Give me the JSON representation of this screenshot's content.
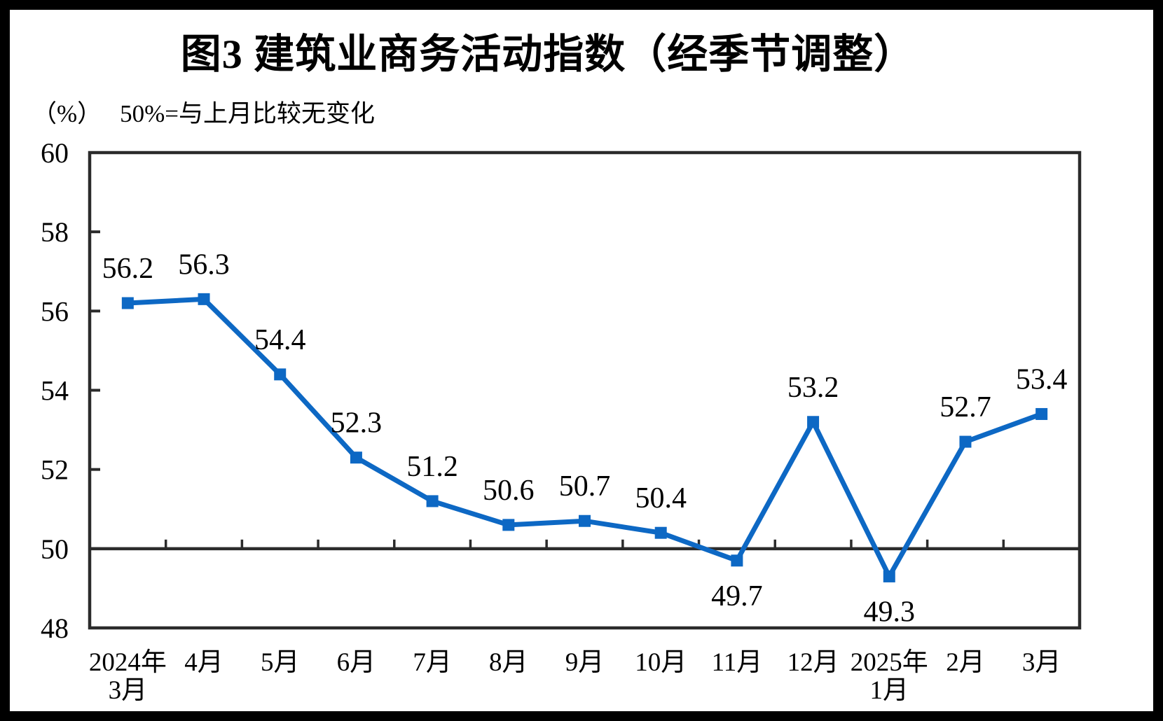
{
  "chart_data": {
    "type": "line",
    "title": "图3  建筑业商务活动指数（经季节调整）",
    "unit_label": "（%）",
    "note": "50%=与上月比较无变化",
    "categories": [
      [
        "2024年",
        "3月"
      ],
      [
        "4月"
      ],
      [
        "5月"
      ],
      [
        "6月"
      ],
      [
        "7月"
      ],
      [
        "8月"
      ],
      [
        "9月"
      ],
      [
        "10月"
      ],
      [
        "11月"
      ],
      [
        "12月"
      ],
      [
        "2025年",
        "1月"
      ],
      [
        "2月"
      ],
      [
        "3月"
      ]
    ],
    "values": [
      56.2,
      56.3,
      54.4,
      52.3,
      51.2,
      50.6,
      50.7,
      50.4,
      49.7,
      53.2,
      49.3,
      52.7,
      53.4
    ],
    "label_below_indices": [
      8,
      10
    ],
    "ylim": [
      48,
      60
    ],
    "ytick_step": 2,
    "reference_line_y": 50,
    "grid": false,
    "legend": "none",
    "line_color": "#0D68C4",
    "marker": "square",
    "axis_color": "#2B2B2B",
    "text_color": "#000000"
  }
}
